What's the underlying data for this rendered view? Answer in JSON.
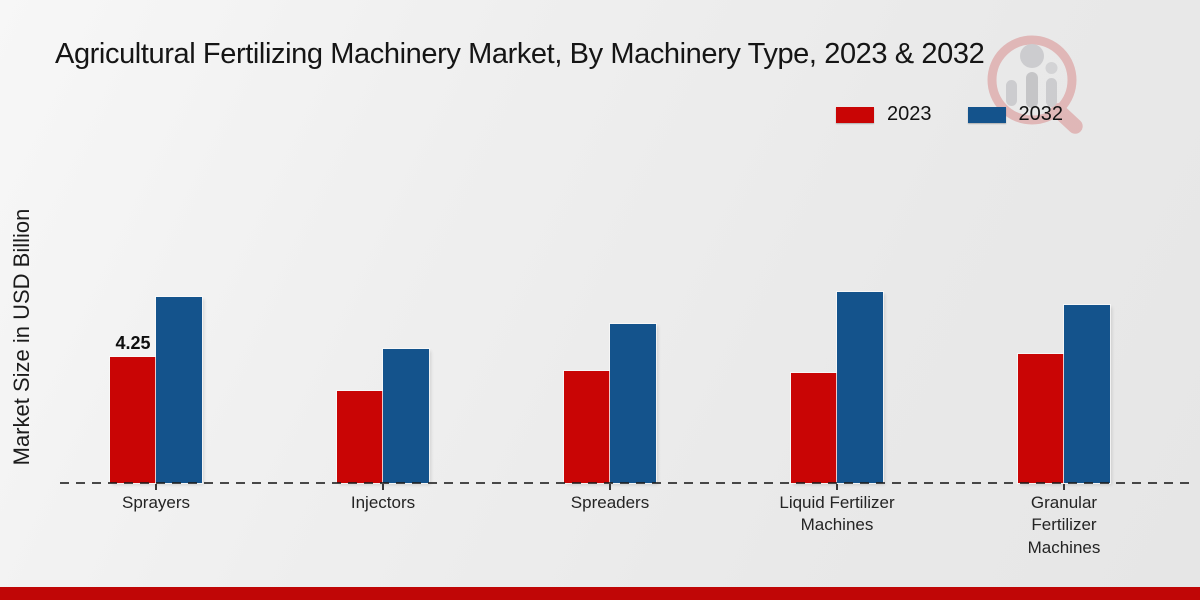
{
  "title": "Agricultural Fertilizing Machinery Market, By Machinery Type, 2023 & 2032",
  "ylabel": "Market Size in USD Billion",
  "legend": {
    "items": [
      {
        "label": "2023",
        "color": "#c90505"
      },
      {
        "label": "2032",
        "color": "#14538c"
      }
    ]
  },
  "chart_data": {
    "type": "bar",
    "title": "Agricultural Fertilizing Machinery Market, By Machinery Type, 2023 & 2032",
    "xlabel": "",
    "ylabel": "Market Size in USD Billion",
    "categories": [
      "Sprayers",
      "Injectors",
      "Spreaders",
      "Liquid Fertilizer Machines",
      "Granular Fertilizer Machines"
    ],
    "series": [
      {
        "name": "2023",
        "color": "#c90505",
        "values": [
          4.25,
          3.1,
          3.78,
          3.7,
          4.35
        ]
      },
      {
        "name": "2032",
        "color": "#14538c",
        "values": [
          6.27,
          4.52,
          5.36,
          6.44,
          6.0
        ]
      }
    ],
    "data_labels": [
      {
        "category": "Sprayers",
        "series": "2023",
        "text": "4.25"
      }
    ],
    "ylim": [
      0,
      7
    ],
    "grid": false,
    "y_axis_ticks_visible": false,
    "x_baseline_style": "dashed",
    "legend_position": "top-right"
  },
  "watermark_name": "market-research-future-logo",
  "footer": {
    "band_color": "#c00606"
  }
}
